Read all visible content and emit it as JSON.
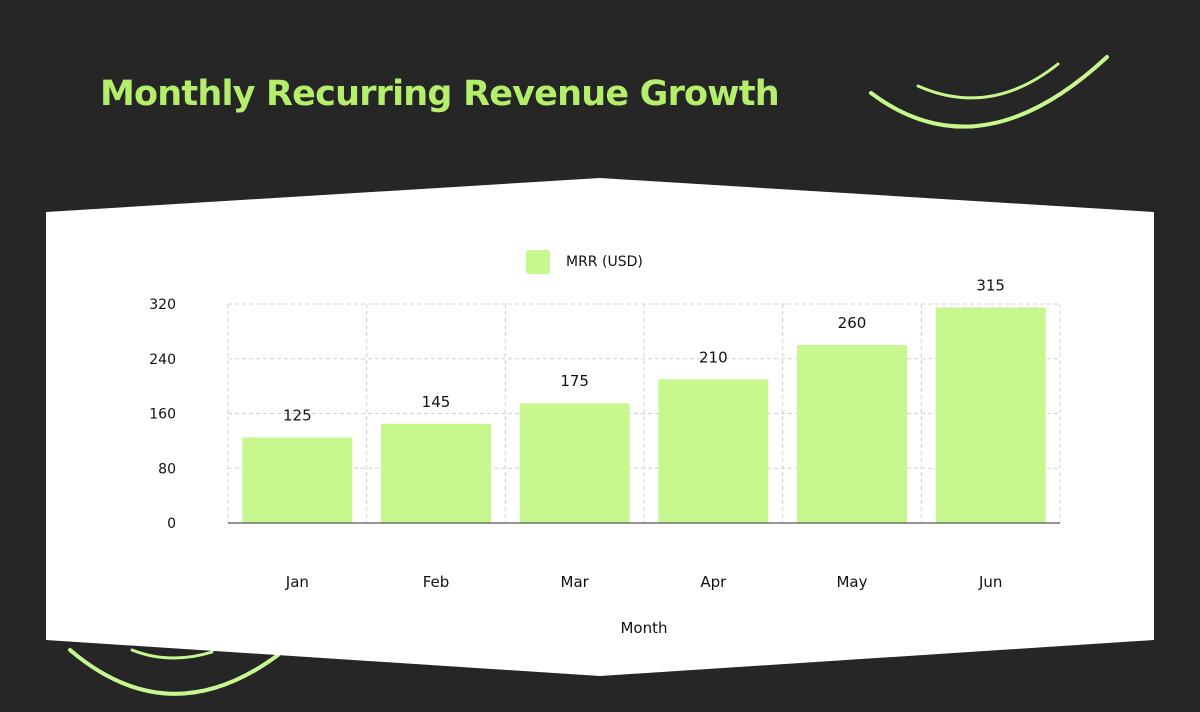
{
  "slide": {
    "title": "Monthly Recurring Revenue Growth",
    "accent_color": "#b5ee6b",
    "background_color": "#262626"
  },
  "chart_data": {
    "type": "bar",
    "categories": [
      "Jan",
      "Feb",
      "Mar",
      "Apr",
      "May",
      "Jun"
    ],
    "series": [
      {
        "name": "MRR (USD)",
        "values": [
          125,
          145,
          175,
          210,
          260,
          315
        ],
        "color": "#c9f78f"
      }
    ],
    "xlabel": "Month",
    "ylabel": "",
    "ylim": [
      0,
      320
    ],
    "yticks": [
      0,
      80,
      160,
      240,
      320
    ],
    "grid": true,
    "legend_position": "top-center",
    "data_labels": true
  }
}
